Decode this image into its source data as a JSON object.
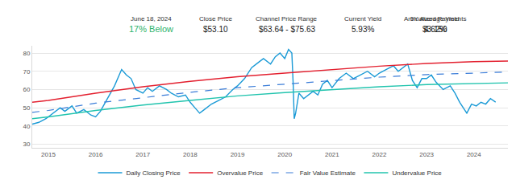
{
  "header": {
    "date": "June 18, 2024",
    "status": "17% Below",
    "stats": [
      {
        "label": "Close Price",
        "value": "$53.10"
      },
      {
        "label": "Channel Price Range",
        "value": "$63.64 - $75.63"
      },
      {
        "label": "Current Yield",
        "value": "5.93%"
      },
      {
        "label": "5Y Average Yield",
        "value": "4.62%"
      },
      {
        "label": "Annualized Payments",
        "value": "$3.150"
      }
    ]
  },
  "chart_data": {
    "type": "line",
    "xlim": [
      2014.66,
      2024.72
    ],
    "xticks": [
      2015,
      2016,
      2017,
      2018,
      2019,
      2020,
      2021,
      2022,
      2023,
      2024
    ],
    "ylim": [
      28,
      84
    ],
    "yticks": [
      30,
      40,
      50,
      60,
      70,
      80
    ],
    "grid": true,
    "legend": "bottom",
    "series": [
      {
        "name": "Daily Closing Price",
        "color": "#1a9ad6",
        "line_style": "solid",
        "x": [
          2014.66,
          2014.8,
          2014.95,
          2015.1,
          2015.25,
          2015.35,
          2015.5,
          2015.6,
          2015.75,
          2015.9,
          2016.0,
          2016.1,
          2016.25,
          2016.4,
          2016.5,
          2016.55,
          2016.65,
          2016.75,
          2016.85,
          2017.0,
          2017.1,
          2017.2,
          2017.35,
          2017.5,
          2017.6,
          2017.75,
          2017.9,
          2018.0,
          2018.1,
          2018.2,
          2018.3,
          2018.45,
          2018.6,
          2018.75,
          2018.9,
          2019.0,
          2019.15,
          2019.3,
          2019.45,
          2019.55,
          2019.7,
          2019.8,
          2019.9,
          2020.0,
          2020.08,
          2020.15,
          2020.18,
          2020.2,
          2020.23,
          2020.3,
          2020.4,
          2020.5,
          2020.6,
          2020.7,
          2020.8,
          2020.9,
          2021.0,
          2021.15,
          2021.3,
          2021.45,
          2021.6,
          2021.75,
          2021.9,
          2022.0,
          2022.15,
          2022.3,
          2022.4,
          2022.5,
          2022.6,
          2022.7,
          2022.8,
          2022.9,
          2023.0,
          2023.1,
          2023.2,
          2023.35,
          2023.5,
          2023.6,
          2023.7,
          2023.8,
          2023.85,
          2023.95,
          2024.05,
          2024.15,
          2024.25,
          2024.35,
          2024.4,
          2024.46
        ],
        "values": [
          41,
          42,
          44,
          47,
          50,
          48,
          51,
          47,
          49,
          46,
          45,
          48,
          55,
          62,
          68,
          71,
          68,
          66,
          60,
          58,
          61,
          59,
          62,
          60,
          58,
          56,
          57,
          53,
          50,
          47,
          49,
          52,
          54,
          56,
          60,
          62,
          66,
          72,
          75,
          77,
          74,
          78,
          80,
          77,
          82,
          80,
          62,
          44,
          47,
          58,
          55,
          57,
          59,
          57,
          63,
          65,
          61,
          66,
          69,
          66,
          68,
          70,
          67,
          69,
          71,
          73,
          70,
          72,
          74,
          65,
          61,
          66,
          66,
          68,
          64,
          60,
          62,
          58,
          53,
          49,
          47,
          52,
          51,
          53,
          52,
          55,
          54,
          53.1
        ]
      },
      {
        "name": "Overvalue Price",
        "color": "#e3202f",
        "line_style": "solid",
        "x": [
          2014.66,
          2015,
          2016,
          2017,
          2018,
          2019,
          2020,
          2021,
          2022,
          2023,
          2024,
          2024.72
        ],
        "values": [
          53,
          54,
          58,
          61.5,
          64.5,
          67,
          69,
          71,
          72.8,
          74.3,
          75.3,
          75.63
        ]
      },
      {
        "name": "Fair Value Estimate",
        "color": "#3b7dd8",
        "line_style": "dashed",
        "x": [
          2014.66,
          2015,
          2016,
          2017,
          2018,
          2019,
          2020,
          2021,
          2022,
          2023,
          2024,
          2024.72
        ],
        "values": [
          47.5,
          48.5,
          52.5,
          55.5,
          58.5,
          61,
          63,
          65,
          66.8,
          68.2,
          69.2,
          69.6
        ]
      },
      {
        "name": "Undervalue Price",
        "color": "#22c4ae",
        "line_style": "solid",
        "x": [
          2014.66,
          2015,
          2016,
          2017,
          2018,
          2019,
          2020,
          2021,
          2022,
          2023,
          2024,
          2024.72
        ],
        "values": [
          44,
          45,
          48.5,
          51.5,
          54,
          56.5,
          58.3,
          60,
          61.5,
          62.7,
          63.3,
          63.64
        ]
      }
    ]
  }
}
